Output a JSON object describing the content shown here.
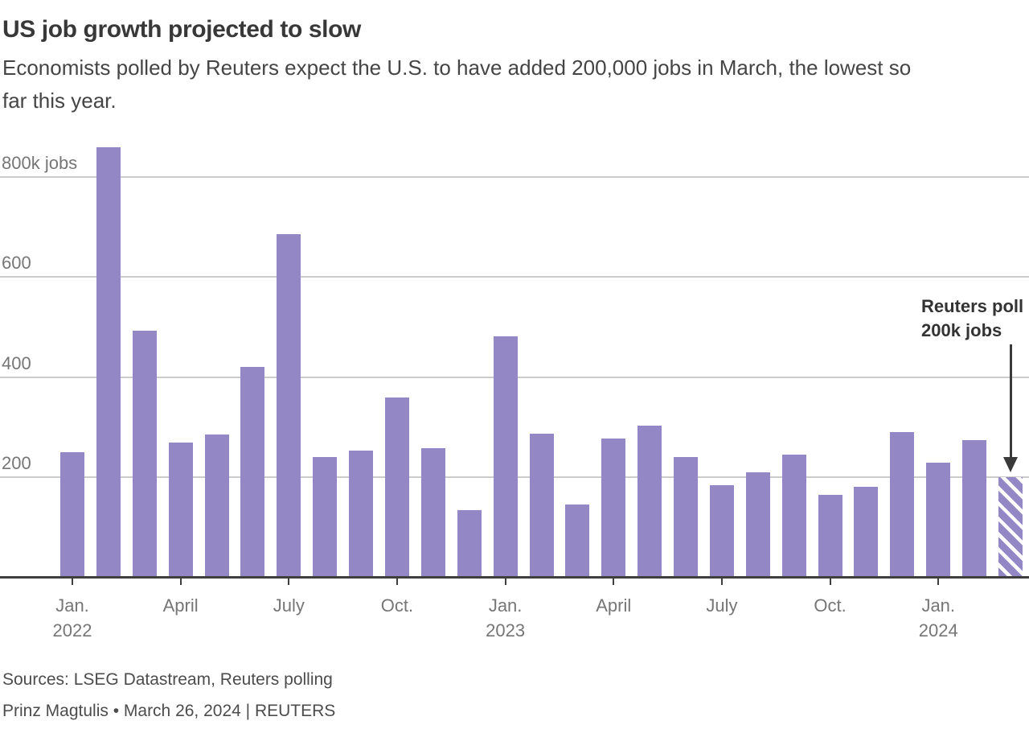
{
  "header": {
    "title": "US job growth projected to slow",
    "subtitle_lines": [
      "Economists polled by Reuters expect the U.S. to have added 200,000 jobs in March, the lowest so",
      "far this year."
    ]
  },
  "chart_data": {
    "type": "bar",
    "title": "US job growth projected to slow",
    "unit": "thousands of jobs per month",
    "categories": [
      "Jan. 2022",
      "Feb. 2022",
      "Mar. 2022",
      "Apr. 2022",
      "May 2022",
      "Jun. 2022",
      "Jul. 2022",
      "Aug. 2022",
      "Sep. 2022",
      "Oct. 2022",
      "Nov. 2022",
      "Dec. 2022",
      "Jan. 2023",
      "Feb. 2023",
      "Mar. 2023",
      "Apr. 2023",
      "May 2023",
      "Jun. 2023",
      "Jul. 2023",
      "Aug. 2023",
      "Sep. 2023",
      "Oct. 2023",
      "Nov. 2023",
      "Dec. 2023",
      "Jan. 2024",
      "Feb. 2024",
      "Mar. 2024"
    ],
    "values": [
      250,
      858,
      493,
      270,
      285,
      420,
      686,
      240,
      254,
      360,
      258,
      135,
      482,
      287,
      146,
      278,
      303,
      240,
      184,
      210,
      246,
      165,
      182,
      290,
      229,
      275,
      200
    ],
    "projected_index": 26,
    "ylim": [
      0,
      900
    ],
    "grid": "on",
    "y_axis": {
      "ticks": [
        {
          "value": 800,
          "label": "800k jobs"
        },
        {
          "value": 600,
          "label": "600"
        },
        {
          "value": 400,
          "label": "400"
        },
        {
          "value": 200,
          "label": "200"
        }
      ]
    },
    "x_axis": {
      "ticks": [
        {
          "index": 0,
          "lines": [
            "Jan.",
            "2022"
          ]
        },
        {
          "index": 3,
          "lines": [
            "April"
          ]
        },
        {
          "index": 6,
          "lines": [
            "July"
          ]
        },
        {
          "index": 9,
          "lines": [
            "Oct."
          ]
        },
        {
          "index": 12,
          "lines": [
            "Jan.",
            "2023"
          ]
        },
        {
          "index": 15,
          "lines": [
            "April"
          ]
        },
        {
          "index": 18,
          "lines": [
            "July"
          ]
        },
        {
          "index": 21,
          "lines": [
            "Oct."
          ]
        },
        {
          "index": 24,
          "lines": [
            "Jan.",
            "2024"
          ]
        }
      ]
    },
    "annotation": {
      "lines": [
        "Reuters poll",
        "200k jobs"
      ],
      "points_to": "Mar. 2024",
      "value": 200
    },
    "colors": {
      "bar": "#9487c6",
      "hatch_stripe": "#ffffff",
      "gridline": "#cccccc",
      "axis": "#3f3f3f",
      "title_text": "#383838",
      "label_text": "#767676"
    }
  },
  "footer": {
    "sources": "Sources: LSEG Datastream, Reuters polling",
    "byline": "Prinz Magtulis • March 26, 2024 | REUTERS"
  }
}
